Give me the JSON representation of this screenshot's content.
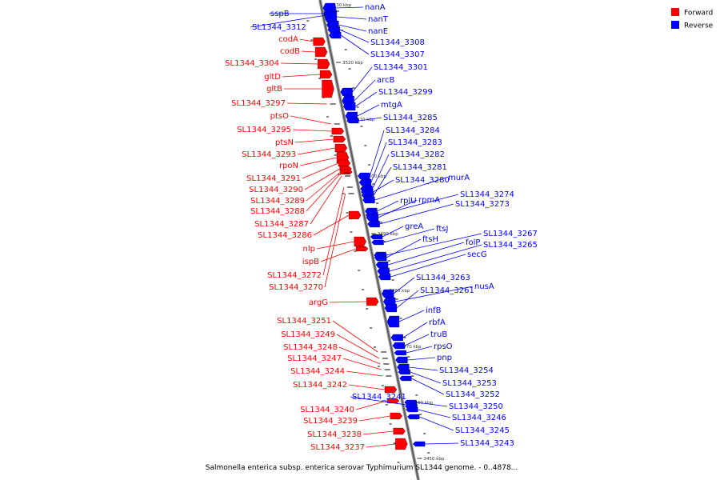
{
  "caption": "Salmonella enterica subsp. enterica serovar Typhimurium SL1344 genome. - 0..4878...",
  "colors": {
    "forward": "#ff0000",
    "reverse": "#0000ff",
    "axis": "#555555"
  },
  "legend": [
    {
      "label": "Forward",
      "strand": "forward"
    },
    {
      "label": "Reverse",
      "strand": "reverse"
    }
  ],
  "ticks": [
    "3530 kbp",
    "3520 kbp",
    "3510 kbp",
    "3500 kbp",
    "3490 kbp",
    "3480 kbp",
    "3470 kbp",
    "3460 kbp",
    "3450 kbp"
  ],
  "genes": [
    {
      "name": "sspB",
      "strand": "reverse"
    },
    {
      "name": "SL1344_3312",
      "strand": "reverse"
    },
    {
      "name": "nanA",
      "strand": "reverse"
    },
    {
      "name": "nanT",
      "strand": "reverse"
    },
    {
      "name": "nanE",
      "strand": "reverse"
    },
    {
      "name": "codA",
      "strand": "forward"
    },
    {
      "name": "codB",
      "strand": "forward"
    },
    {
      "name": "SL1344_3308",
      "strand": "reverse"
    },
    {
      "name": "SL1344_3307",
      "strand": "reverse"
    },
    {
      "name": "SL1344_3304",
      "strand": "forward"
    },
    {
      "name": "SL1344_3301",
      "strand": "reverse"
    },
    {
      "name": "gltD",
      "strand": "forward"
    },
    {
      "name": "arcB",
      "strand": "reverse"
    },
    {
      "name": "gltB",
      "strand": "forward"
    },
    {
      "name": "SL1344_3299",
      "strand": "reverse"
    },
    {
      "name": "SL1344_3297",
      "strand": "forward"
    },
    {
      "name": "mtgA",
      "strand": "reverse"
    },
    {
      "name": "ptsO",
      "strand": "forward"
    },
    {
      "name": "SL1344_3285",
      "strand": "reverse"
    },
    {
      "name": "SL1344_3295",
      "strand": "forward"
    },
    {
      "name": "SL1344_3284",
      "strand": "reverse"
    },
    {
      "name": "ptsN",
      "strand": "forward"
    },
    {
      "name": "SL1344_3283",
      "strand": "reverse"
    },
    {
      "name": "SL1344_3293",
      "strand": "forward"
    },
    {
      "name": "SL1344_3282",
      "strand": "reverse"
    },
    {
      "name": "rpoN",
      "strand": "forward"
    },
    {
      "name": "SL1344_3281",
      "strand": "reverse"
    },
    {
      "name": "SL1344_3291",
      "strand": "forward"
    },
    {
      "name": "murA",
      "strand": "reverse"
    },
    {
      "name": "SL1344_3280",
      "strand": "reverse"
    },
    {
      "name": "SL1344_3290",
      "strand": "forward"
    },
    {
      "name": "SL1344_3274",
      "strand": "reverse"
    },
    {
      "name": "SL1344_3289",
      "strand": "forward"
    },
    {
      "name": "rplU",
      "strand": "reverse"
    },
    {
      "name": "rpmA",
      "strand": "reverse"
    },
    {
      "name": "SL1344_3273",
      "strand": "reverse"
    },
    {
      "name": "SL1344_3288",
      "strand": "forward"
    },
    {
      "name": "SL1344_3287",
      "strand": "forward"
    },
    {
      "name": "greA",
      "strand": "reverse"
    },
    {
      "name": "ftsJ",
      "strand": "reverse"
    },
    {
      "name": "SL1344_3286",
      "strand": "forward"
    },
    {
      "name": "SL1344_3267",
      "strand": "reverse"
    },
    {
      "name": "ftsH",
      "strand": "reverse"
    },
    {
      "name": "folP",
      "strand": "reverse"
    },
    {
      "name": "SL1344_3265",
      "strand": "reverse"
    },
    {
      "name": "nlp",
      "strand": "forward"
    },
    {
      "name": "secG",
      "strand": "reverse"
    },
    {
      "name": "ispB",
      "strand": "forward"
    },
    {
      "name": "SL1344_3272",
      "strand": "forward"
    },
    {
      "name": "SL1344_3263",
      "strand": "reverse"
    },
    {
      "name": "nusA",
      "strand": "reverse"
    },
    {
      "name": "SL1344_3270",
      "strand": "forward"
    },
    {
      "name": "SL1344_3261",
      "strand": "reverse"
    },
    {
      "name": "argG",
      "strand": "forward"
    },
    {
      "name": "infB",
      "strand": "reverse"
    },
    {
      "name": "SL1344_3251",
      "strand": "forward"
    },
    {
      "name": "rbfA",
      "strand": "reverse"
    },
    {
      "name": "SL1344_3249",
      "strand": "forward"
    },
    {
      "name": "truB",
      "strand": "reverse"
    },
    {
      "name": "SL1344_3248",
      "strand": "forward"
    },
    {
      "name": "rpsO",
      "strand": "reverse"
    },
    {
      "name": "SL1344_3247",
      "strand": "forward"
    },
    {
      "name": "pnp",
      "strand": "reverse"
    },
    {
      "name": "SL1344_3244",
      "strand": "forward"
    },
    {
      "name": "SL1344_3254",
      "strand": "reverse"
    },
    {
      "name": "SL1344_3242",
      "strand": "forward"
    },
    {
      "name": "SL1344_3253",
      "strand": "reverse"
    },
    {
      "name": "SL1344_3241",
      "strand": "reverse"
    },
    {
      "name": "SL1344_3252",
      "strand": "reverse"
    },
    {
      "name": "SL1344_3240",
      "strand": "forward"
    },
    {
      "name": "SL1344_3250",
      "strand": "reverse"
    },
    {
      "name": "SL1344_3239",
      "strand": "forward"
    },
    {
      "name": "SL1344_3246",
      "strand": "reverse"
    },
    {
      "name": "SL1344_3238",
      "strand": "forward"
    },
    {
      "name": "SL1344_3245",
      "strand": "reverse"
    },
    {
      "name": "SL1344_3237",
      "strand": "forward"
    },
    {
      "name": "SL1344_3243",
      "strand": "reverse"
    }
  ]
}
